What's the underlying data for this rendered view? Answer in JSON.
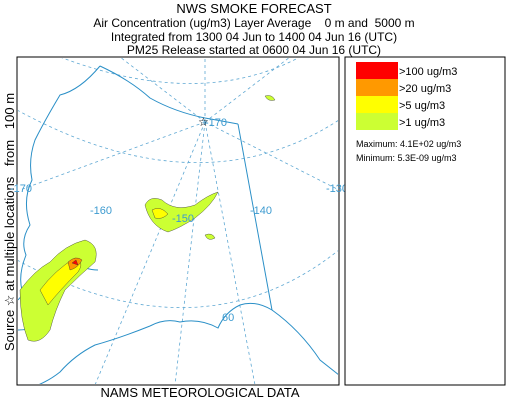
{
  "header": {
    "title": "NWS SMOKE FORECAST",
    "lines": [
      "Air Concentration (ug/m3) Layer Average    0 m and  5000 m",
      "Integrated from 1300 04 Jun to 1400 04 Jun 16 (UTC)",
      "PM25 Release started at 0600 04 Jun 16 (UTC)"
    ]
  },
  "side_label": "Source ☆ at multiple locations   from   100 m",
  "footer": "NAMS METEOROLOGICAL DATA",
  "map": {
    "grid_labels": [
      "-170",
      "-170",
      "-160",
      "-150",
      "-140",
      "-130",
      "60"
    ]
  },
  "legend": {
    "entries": [
      {
        "label": ">100 ug/m3",
        "color": "#ff0000"
      },
      {
        "label": ">20 ug/m3",
        "color": "#ff9900"
      },
      {
        "label": ">5 ug/m3",
        "color": "#ffff00"
      },
      {
        "label": ">1 ug/m3",
        "color": "#ccff33"
      }
    ],
    "maximum": "Maximum: 4.1E+02 ug/m3",
    "minimum": "Minimum: 5.3E-09 ug/m3"
  }
}
